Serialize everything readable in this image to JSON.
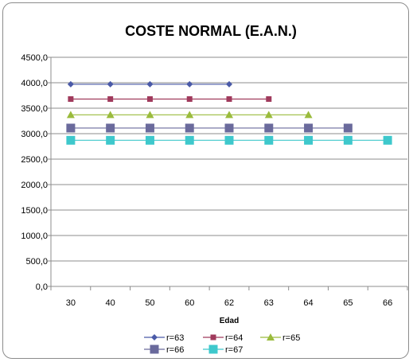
{
  "chart_data": {
    "type": "line",
    "title": "COSTE NORMAL (E.A.N.)",
    "xlabel": "Edad",
    "ylabel": "",
    "categories": [
      "30",
      "40",
      "50",
      "60",
      "62",
      "63",
      "64",
      "65",
      "66"
    ],
    "ylim": [
      0,
      4500
    ],
    "yticks": [
      "0,0",
      "500,0",
      "1000,0",
      "1500,0",
      "2000,0",
      "2500,0",
      "3000,0",
      "3500,0",
      "4000,0",
      "4500,0"
    ],
    "ytick_values": [
      0,
      500,
      1000,
      1500,
      2000,
      2500,
      3000,
      3500,
      4000,
      4500
    ],
    "grid": true,
    "legend_position": "bottom",
    "series": [
      {
        "name": "r=63",
        "color": "#4a5aa8",
        "marker": "diamond",
        "values": [
          3970,
          3970,
          3970,
          3970,
          3970,
          null,
          null,
          null,
          null
        ]
      },
      {
        "name": "r=64",
        "color": "#a03a5c",
        "marker": "square",
        "values": [
          3680,
          3680,
          3680,
          3680,
          3680,
          3680,
          null,
          null,
          null
        ]
      },
      {
        "name": "r=65",
        "color": "#9abb3c",
        "marker": "triangle",
        "values": [
          3370,
          3370,
          3370,
          3370,
          3370,
          3370,
          3370,
          null,
          null
        ]
      },
      {
        "name": "r=66",
        "color": "#6a6a9c",
        "marker": "bigsquare",
        "values": [
          3110,
          3110,
          3110,
          3110,
          3110,
          3110,
          3110,
          3110,
          null
        ]
      },
      {
        "name": "r=67",
        "color": "#3ec8cc",
        "marker": "bigsquare",
        "values": [
          2870,
          2870,
          2870,
          2870,
          2870,
          2870,
          2870,
          2870,
          2870
        ]
      }
    ]
  }
}
